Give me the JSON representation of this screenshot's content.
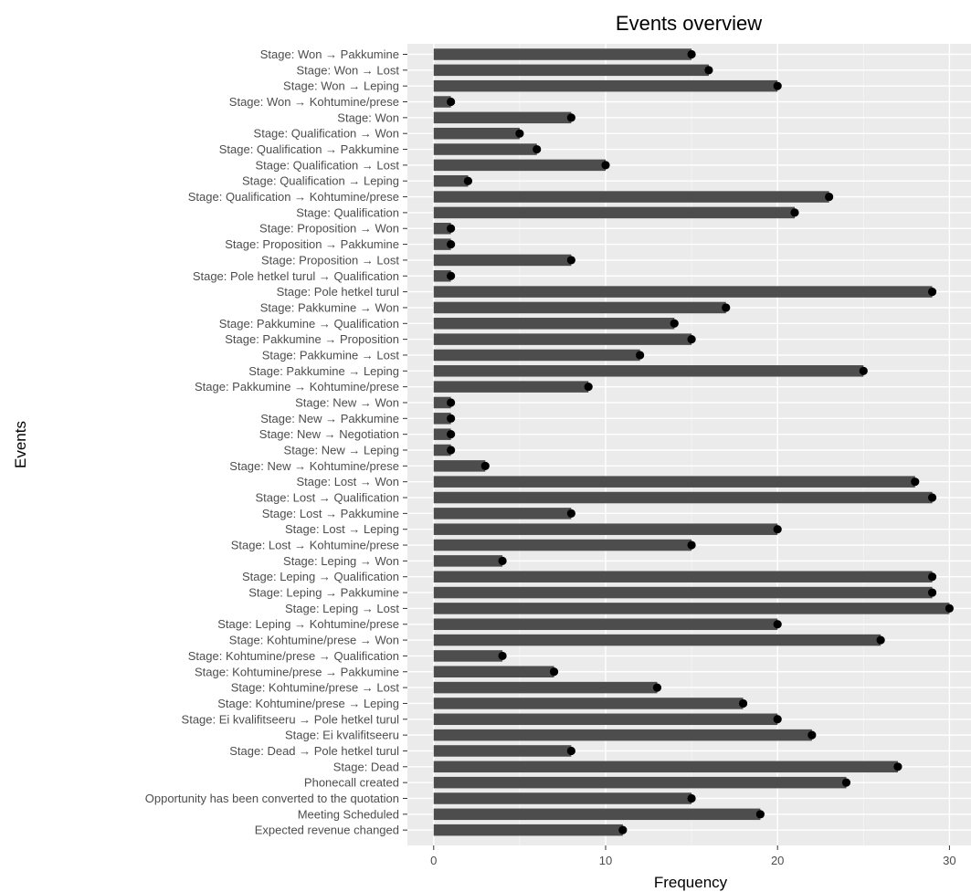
{
  "chart_data": {
    "type": "bar",
    "orientation": "horizontal",
    "title": "Events overview",
    "xlabel": "Frequency",
    "ylabel": "Events",
    "xlim": [
      0,
      31
    ],
    "x_ticks": [
      0,
      10,
      20,
      30
    ],
    "grid": true,
    "bar_color": "#4d4d4d",
    "point_color": "#000000",
    "panel_color": "#ebebeb",
    "categories": [
      "Stage: Won → Pakkumine",
      "Stage: Won → Lost",
      "Stage: Won → Leping",
      "Stage: Won → Kohtumine/prese",
      "Stage: Won",
      "Stage: Qualification → Won",
      "Stage: Qualification → Pakkumine",
      "Stage: Qualification → Lost",
      "Stage: Qualification → Leping",
      "Stage: Qualification → Kohtumine/prese",
      "Stage: Qualification",
      "Stage: Proposition → Won",
      "Stage: Proposition → Pakkumine",
      "Stage: Proposition → Lost",
      "Stage: Pole hetkel turul → Qualification",
      "Stage: Pole hetkel turul",
      "Stage: Pakkumine → Won",
      "Stage: Pakkumine → Qualification",
      "Stage: Pakkumine → Proposition",
      "Stage: Pakkumine → Lost",
      "Stage: Pakkumine → Leping",
      "Stage: Pakkumine → Kohtumine/prese",
      "Stage: New → Won",
      "Stage: New → Pakkumine",
      "Stage: New → Negotiation",
      "Stage: New → Leping",
      "Stage: New → Kohtumine/prese",
      "Stage: Lost → Won",
      "Stage: Lost → Qualification",
      "Stage: Lost → Pakkumine",
      "Stage: Lost → Leping",
      "Stage: Lost → Kohtumine/prese",
      "Stage: Leping → Won",
      "Stage: Leping → Qualification",
      "Stage: Leping → Pakkumine",
      "Stage: Leping → Lost",
      "Stage: Leping → Kohtumine/prese",
      "Stage: Kohtumine/prese → Won",
      "Stage: Kohtumine/prese → Qualification",
      "Stage: Kohtumine/prese → Pakkumine",
      "Stage: Kohtumine/prese → Lost",
      "Stage: Kohtumine/prese → Leping",
      "Stage: Ei kvalifitseeru → Pole hetkel turul",
      "Stage: Ei kvalifitseeru",
      "Stage: Dead → Pole hetkel turul",
      "Stage: Dead",
      "Phonecall created",
      "Opportunity has been converted to the quotation",
      "Meeting Scheduled",
      "Expected revenue changed"
    ],
    "values": [
      15,
      16,
      20,
      1,
      8,
      5,
      6,
      10,
      2,
      23,
      21,
      1,
      1,
      8,
      1,
      29,
      17,
      14,
      15,
      12,
      25,
      9,
      1,
      1,
      1,
      1,
      3,
      28,
      29,
      8,
      20,
      15,
      4,
      29,
      29,
      30,
      20,
      26,
      4,
      7,
      13,
      18,
      20,
      22,
      8,
      27,
      24,
      15,
      19,
      11
    ]
  }
}
